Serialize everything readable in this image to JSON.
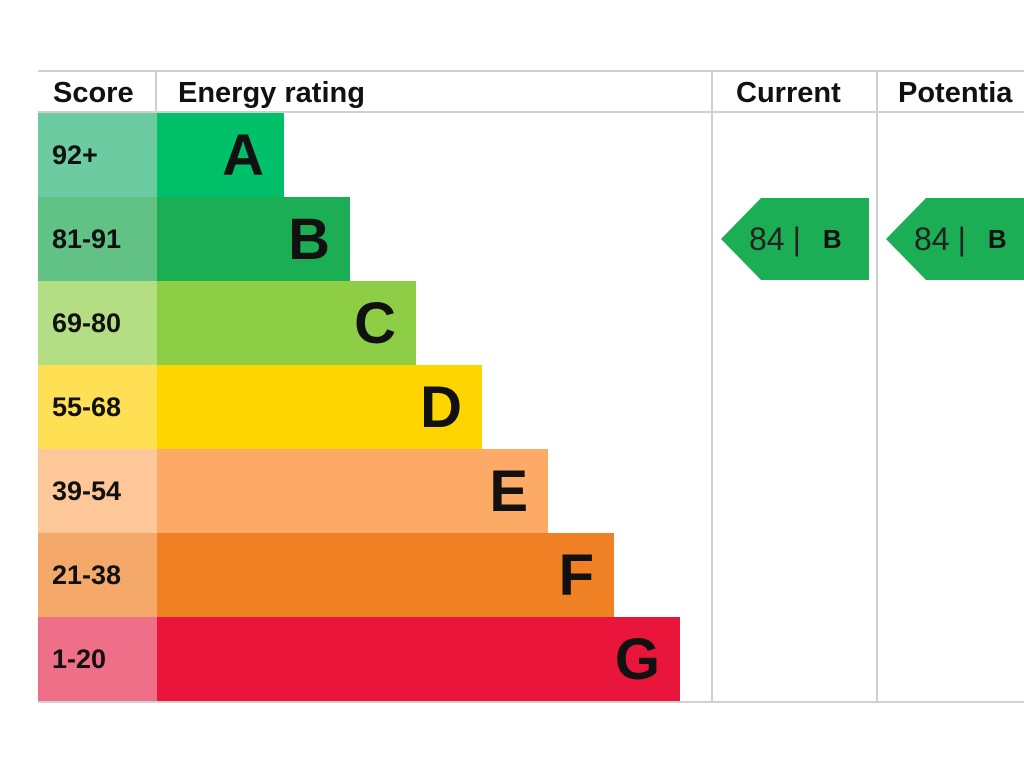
{
  "headers": {
    "score": "Score",
    "rating": "Energy rating",
    "current": "Current",
    "potential": "Potentia"
  },
  "chart_data": {
    "type": "bar",
    "title": "",
    "categories": [
      "A",
      "B",
      "C",
      "D",
      "E",
      "F",
      "G"
    ],
    "score_ranges": [
      "92+",
      "81-91",
      "69-80",
      "55-68",
      "39-54",
      "21-38",
      "1-20"
    ],
    "bar_colors": [
      "#00c06a",
      "#1bae55",
      "#8dce46",
      "#ffd500",
      "#fcaa65",
      "#ef8023",
      "#e9153b"
    ],
    "score_colors": [
      "#6ccba0",
      "#62c285",
      "#b4de84",
      "#ffe055",
      "#fdc79a",
      "#f4a96b",
      "#ef6e88"
    ],
    "current": {
      "score": "84",
      "rating": "B",
      "color": "#1bae55"
    },
    "potential": {
      "score": "84",
      "rating": "B",
      "color": "#1bae55"
    }
  }
}
